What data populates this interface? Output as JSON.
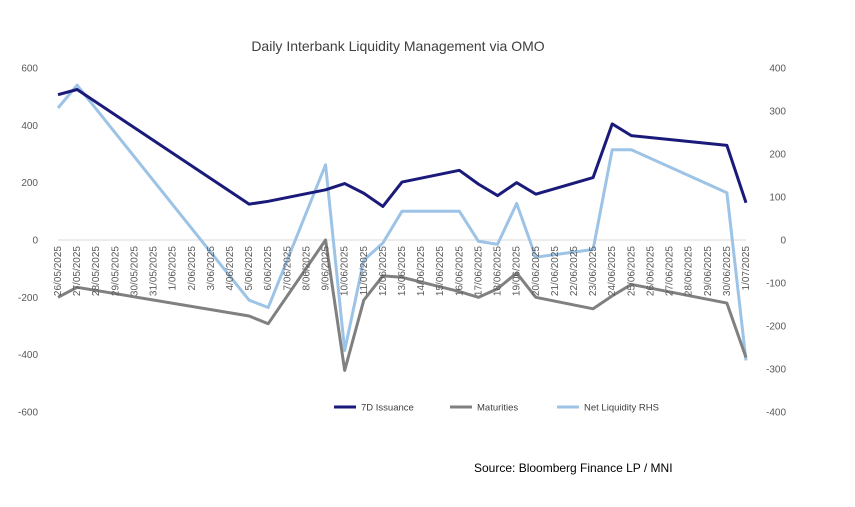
{
  "chart_data": {
    "type": "line",
    "title": "Daily Interbank Liquidity Management via OMO",
    "source": "Source: Bloomberg Finance LP / MNI",
    "x": [
      "26/05/2025",
      "27/05/2025",
      "28/05/2025",
      "29/05/2025",
      "30/05/2025",
      "31/05/2025",
      "1/06/2025",
      "2/06/2025",
      "3/06/2025",
      "4/06/2025",
      "5/06/2025",
      "6/06/2025",
      "7/06/2025",
      "8/06/2025",
      "9/06/2025",
      "10/06/2025",
      "11/06/2025",
      "12/06/2025",
      "13/06/2025",
      "14/06/2025",
      "15/06/2025",
      "16/06/2025",
      "17/06/2025",
      "18/06/2025",
      "19/06/2025",
      "20/06/2025",
      "21/06/2025",
      "22/06/2025",
      "23/06/2025",
      "24/06/2025",
      "25/06/2025",
      "26/06/2025",
      "27/06/2025",
      "28/06/2025",
      "29/06/2025",
      "30/06/2025",
      "1/07/2025"
    ],
    "series": [
      {
        "name": "7D Issuance",
        "axis": "left",
        "color": "#1a1a7a",
        "points": [
          [
            0,
            507
          ],
          [
            1,
            525
          ],
          [
            10,
            125
          ],
          [
            11,
            135
          ],
          [
            14,
            175
          ],
          [
            15,
            197
          ],
          [
            16,
            163
          ],
          [
            17,
            117
          ],
          [
            18,
            202
          ],
          [
            21,
            243
          ],
          [
            22,
            195
          ],
          [
            23,
            155
          ],
          [
            24,
            200
          ],
          [
            25,
            160
          ],
          [
            28,
            218
          ],
          [
            29,
            405
          ],
          [
            30,
            364
          ],
          [
            35,
            330
          ],
          [
            36,
            130
          ]
        ]
      },
      {
        "name": "Maturities",
        "axis": "left",
        "color": "#808080",
        "points": [
          [
            0,
            -200
          ],
          [
            1,
            -165
          ],
          [
            10,
            -265
          ],
          [
            11,
            -292
          ],
          [
            14,
            0
          ],
          [
            15,
            -455
          ],
          [
            16,
            -210
          ],
          [
            17,
            -125
          ],
          [
            18,
            -130
          ],
          [
            21,
            -180
          ],
          [
            22,
            -200
          ],
          [
            23,
            -170
          ],
          [
            24,
            -115
          ],
          [
            25,
            -200
          ],
          [
            28,
            -240
          ],
          [
            29,
            -195
          ],
          [
            30,
            -155
          ],
          [
            35,
            -220
          ],
          [
            36,
            -410
          ]
        ]
      },
      {
        "name": "Net Liquidity RHS",
        "axis": "right",
        "color": "#9dc3e6",
        "points": [
          [
            0,
            307
          ],
          [
            1,
            360
          ],
          [
            10,
            -140
          ],
          [
            11,
            -157
          ],
          [
            14,
            175
          ],
          [
            15,
            -257
          ],
          [
            16,
            -47
          ],
          [
            17,
            -7
          ],
          [
            18,
            67
          ],
          [
            21,
            67
          ],
          [
            22,
            -3
          ],
          [
            23,
            -10
          ],
          [
            24,
            85
          ],
          [
            25,
            -40
          ],
          [
            28,
            -22
          ],
          [
            29,
            210
          ],
          [
            30,
            210
          ],
          [
            35,
            110
          ],
          [
            36,
            -280
          ]
        ]
      }
    ],
    "ylim": [
      -600,
      600
    ],
    "y_ticks": [
      "600",
      "400",
      "200",
      "0",
      "-200",
      "-400",
      "-600"
    ],
    "y2lim": [
      -400,
      400
    ],
    "y2_ticks": [
      "400",
      "300",
      "200",
      "100",
      "0",
      "-100",
      "-200",
      "-300",
      "-400"
    ],
    "grid": false,
    "legend": "bottom-right"
  }
}
